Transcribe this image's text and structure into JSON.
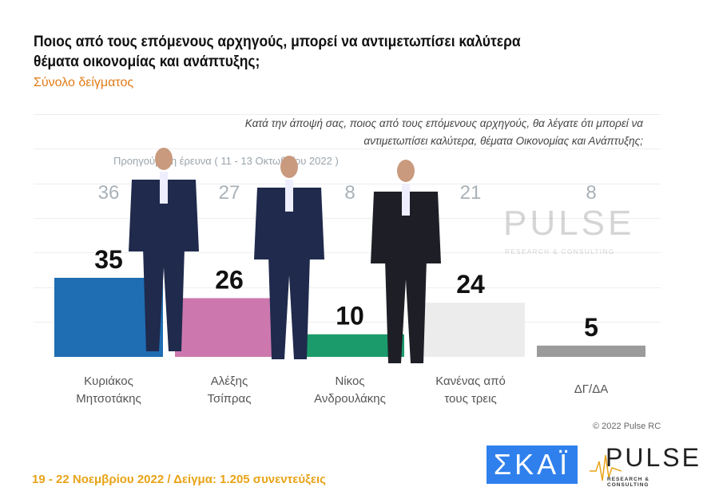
{
  "header": {
    "title": "Ποιος από τους επόμενους αρχηγούς, μπορεί να αντιμετωπίσει καλύτερα θέματα οικονομίας και ανάπτυξης;",
    "subtitle": "Σύνολο δείγματος",
    "question": "Κατά την άποψή σας, ποιος  από τους επόμενους αρχηγούς, θα λέγατε ότι μπορεί να αντιμετωπίσει καλύτερα, θέματα Οικονομίας και Ανάπτυξης;"
  },
  "chart_data": {
    "type": "bar",
    "categories": [
      "Κυριάκος Μητσοτάκης",
      "Αλέξης Τσίπρας",
      "Νίκος Ανδρουλάκης",
      "Κανένας από τους τρεις",
      "ΔΓ/ΔΑ"
    ],
    "series": [
      {
        "name": "Προηγούμενη έρευνα ( 11 - 13 Οκτωβρίου 2022 )",
        "values": [
          36,
          27,
          8,
          21,
          8
        ]
      },
      {
        "values": [
          35,
          26,
          10,
          24,
          5
        ]
      }
    ],
    "colors": [
      "#1f6db3",
      "#cc78ae",
      "#1b9b6b",
      "#ececec",
      "#9b9b9b"
    ],
    "ylim": [
      0,
      40
    ],
    "grid": true
  },
  "watermark": {
    "brand": "PULSE",
    "tagline": "RESEARCH & CONSULTING"
  },
  "footer": {
    "fieldwork": "19 - 22  Νοεμβρίου  2022  /  Δείγμα:  1.205 συνεντεύξεις",
    "copyright": "© 2022 Pulse RC",
    "logo_skai": "ΣΚΑΪ",
    "logo_pulse": "PULSE",
    "logo_pulse_tagline": "RESEARCH & CONSULTING"
  }
}
